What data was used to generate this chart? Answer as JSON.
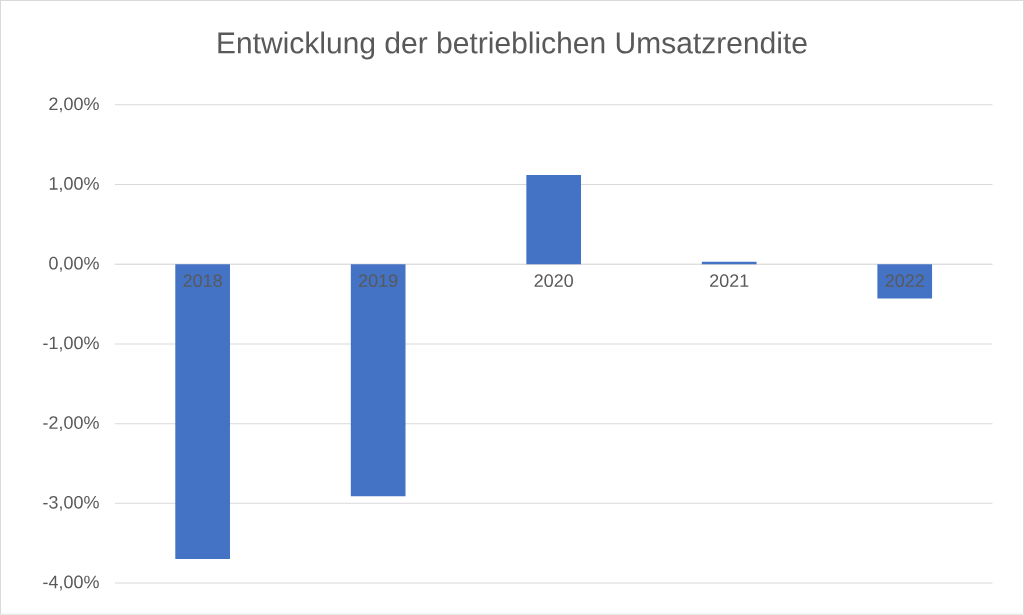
{
  "chart_data": {
    "type": "bar",
    "title": "Entwicklung der betrieblichen Umsatzrendite",
    "categories": [
      "2018",
      "2019",
      "2020",
      "2021",
      "2022"
    ],
    "values": [
      -3.7,
      -2.91,
      1.12,
      0.03,
      -0.43
    ],
    "color": "#4472c4",
    "ylim": [
      -4,
      2
    ],
    "yticks": [
      {
        "value": -4,
        "label": "-4,00%"
      },
      {
        "value": -3,
        "label": "-3,00%"
      },
      {
        "value": -2,
        "label": "-2,00%"
      },
      {
        "value": -1,
        "label": "-1,00%"
      },
      {
        "value": 0,
        "label": "0,00%"
      },
      {
        "value": 1,
        "label": "1,00%"
      },
      {
        "value": 2,
        "label": "2,00%"
      }
    ],
    "grid": "y"
  }
}
